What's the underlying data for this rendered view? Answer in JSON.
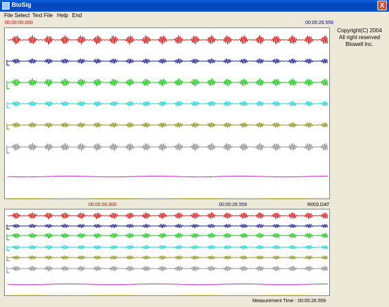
{
  "window": {
    "title": "BioSig",
    "close_label": "X"
  },
  "menu": [
    "File Select",
    "Text File",
    "Help",
    "End"
  ],
  "top_panel": {
    "start_time": "00:00:00.000",
    "end_time": "00:00:26.559"
  },
  "bottom_panel": {
    "start_time": "00:00:00.000",
    "end_time": "00:00:26.559",
    "file_name": "R003.DAT"
  },
  "copyright": {
    "line1": "Copyright(C) 2004",
    "line2": "All right reserved",
    "line3": "Blowell Inc."
  },
  "status": {
    "measurement_label": "Measurement Time :",
    "measurement_value": "00:00:26.559"
  },
  "colors": {
    "red": "#cc0000",
    "navy": "#000080",
    "green": "#00bb00",
    "cyan": "#00cccc",
    "olive": "#808000",
    "gray": "#808080",
    "magenta": "#c000c0",
    "yellow": "#ffff66"
  },
  "channels": [
    {
      "name": "red",
      "color": "#cc0000"
    },
    {
      "name": "navy",
      "color": "#000080"
    },
    {
      "name": "green",
      "color": "#00bb00"
    },
    {
      "name": "cyan",
      "color": "#00cccc"
    },
    {
      "name": "olive",
      "color": "#808000"
    },
    {
      "name": "gray",
      "color": "#808080"
    },
    {
      "name": "magenta",
      "color": "#c000c0"
    },
    {
      "name": "yellow",
      "color": "#ffff66"
    }
  ]
}
